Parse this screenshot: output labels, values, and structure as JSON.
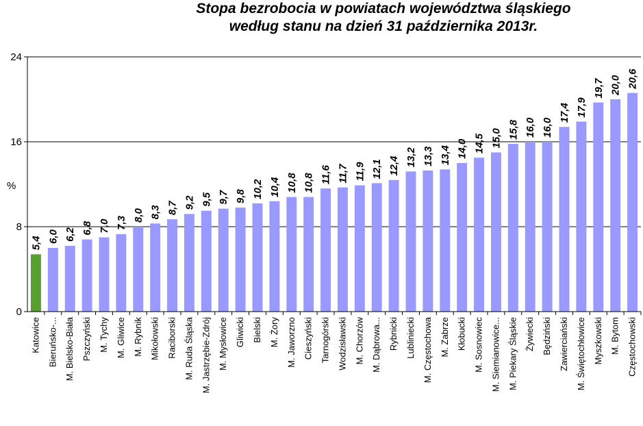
{
  "chart_data": {
    "type": "bar",
    "title_line1": "Stopa bezrobocia w powiatach województwa śląskiego",
    "title_line2": "według stanu na dzień 31 października 2013r.",
    "ylabel": "%",
    "ylim": [
      0,
      24
    ],
    "yticks": [
      "0",
      "8",
      "16",
      "24"
    ],
    "grid": true,
    "colors": {
      "bar": "#9999ff",
      "highlight": "#5a9e2f"
    },
    "highlight_index": 0,
    "categories": [
      "Katowice",
      "Bieruńsko-...",
      "M. Bielsko-Biała",
      "Pszczyński",
      "M. Tychy",
      "M. Gliwice",
      "M. Rybnik",
      "Mikołowski",
      "Raciborski",
      "M. Ruda Śląska",
      "M. Jastrzębie-Zdrój",
      "M. Mysłowice",
      "Gliwicki",
      "Bielski",
      "M. Żory",
      "M. Jaworzno",
      "Cieszyński",
      "Tarnogórski",
      "Wodzisławski",
      "M. Chorzów",
      "M. Dąbrowa...",
      "Rybnicki",
      "Lubliniecki",
      "M. Częstochowa",
      "M. Zabrze",
      "Kłobucki",
      "M. Sosnowiec",
      "M. Siemianowice...",
      "M. Piekary Śląskie",
      "Żywiecki",
      "Będziński",
      "Zawierciański",
      "M. Świętochłowice",
      "Myszkowski",
      "M. Bytom",
      "Częstochowski"
    ],
    "values": [
      5.4,
      6.0,
      6.2,
      6.8,
      7.0,
      7.3,
      8.0,
      8.3,
      8.7,
      9.2,
      9.5,
      9.7,
      9.8,
      10.2,
      10.4,
      10.8,
      10.8,
      11.6,
      11.7,
      11.9,
      12.1,
      12.4,
      13.2,
      13.3,
      13.4,
      14.0,
      14.5,
      15.0,
      15.8,
      16.0,
      16.0,
      17.4,
      17.9,
      19.7,
      20.0,
      20.6
    ],
    "value_labels": [
      "5,4",
      "6,0",
      "6,2",
      "6,8",
      "7,0",
      "7,3",
      "8,0",
      "8,3",
      "8,7",
      "9,2",
      "9,5",
      "9,7",
      "9,8",
      "10,2",
      "10,4",
      "10,8",
      "10,8",
      "11,6",
      "11,7",
      "11,9",
      "12,1",
      "12,4",
      "13,2",
      "13,3",
      "13,4",
      "14,0",
      "14,5",
      "15,0",
      "15,8",
      "16,0",
      "16,0",
      "17,4",
      "17,9",
      "19,7",
      "20,0",
      "20,6"
    ]
  }
}
